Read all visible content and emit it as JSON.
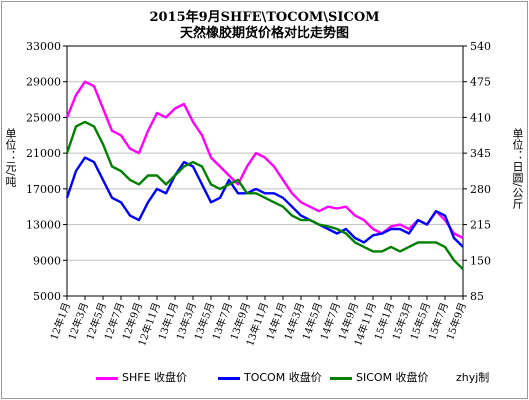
{
  "title_line1": "2015年9月SHFE\\TOCOM\\SICOM",
  "title_line2": "天然橡胶期货价格对比走势图",
  "ylabel_left": "单位：元/吨",
  "ylabel_right": "单位：日圆/公斤",
  "credit": "zhyj制",
  "colors": {
    "shfe": "#ff00ff",
    "tocom": "#0000ff",
    "sicom": "#008000",
    "grid": "#c0c0c0",
    "axis": "#000000"
  },
  "chart_data": {
    "type": "line",
    "title": "2015年9月SHFE\\TOCOM\\SICOM 天然橡胶期货价格对比走势图",
    "x_tick_labels": [
      "12年1月",
      "12年3月",
      "12年5月",
      "12年7月",
      "12年9月",
      "12年11月",
      "13年1月",
      "13年3月",
      "13年5月",
      "13年7月",
      "13年9月",
      "13年11月",
      "14年1月",
      "14年3月",
      "14年5月",
      "14年7月",
      "14年9月",
      "14年11月",
      "15年1月",
      "15年3月",
      "15年5月",
      "15年7月",
      "15年9月"
    ],
    "x_range": [
      "2012-01",
      "2015-09"
    ],
    "left_axis": {
      "label": "单位：元/吨",
      "range": [
        5000,
        33000
      ],
      "ticks": [
        5000,
        9000,
        13000,
        17000,
        21000,
        25000,
        29000,
        33000
      ]
    },
    "right_axis": {
      "label": "单位：日圆/公斤",
      "range": [
        85,
        540
      ],
      "ticks": [
        85,
        150,
        215,
        280,
        345,
        410,
        475,
        540
      ]
    },
    "grid": true,
    "legend_position": "bottom",
    "series": [
      {
        "name": "SHFE 收盘价",
        "axis": "left",
        "x": [
          "2012-01",
          "2012-02",
          "2012-03",
          "2012-04",
          "2012-05",
          "2012-06",
          "2012-07",
          "2012-08",
          "2012-09",
          "2012-10",
          "2012-11",
          "2012-12",
          "2013-01",
          "2013-02",
          "2013-03",
          "2013-04",
          "2013-05",
          "2013-06",
          "2013-07",
          "2013-08",
          "2013-09",
          "2013-10",
          "2013-11",
          "2013-12",
          "2014-01",
          "2014-02",
          "2014-03",
          "2014-04",
          "2014-05",
          "2014-06",
          "2014-07",
          "2014-08",
          "2014-09",
          "2014-10",
          "2014-11",
          "2014-12",
          "2015-01",
          "2015-02",
          "2015-03",
          "2015-04",
          "2015-05",
          "2015-06",
          "2015-07",
          "2015-08",
          "2015-09"
        ],
        "values": [
          25000,
          27500,
          29000,
          28500,
          26000,
          23500,
          23000,
          21500,
          21000,
          23500,
          25500,
          25000,
          26000,
          26500,
          24500,
          23000,
          20500,
          19500,
          18500,
          17500,
          19500,
          21000,
          20500,
          19500,
          18000,
          16500,
          15500,
          15000,
          14500,
          15000,
          14800,
          15000,
          14000,
          13500,
          12500,
          12000,
          12800,
          13000,
          12500,
          13500,
          13000,
          14500,
          13500,
          12000,
          11500
        ]
      },
      {
        "name": "TOCOM 收盘价",
        "axis": "left",
        "x": [
          "2012-01",
          "2012-02",
          "2012-03",
          "2012-04",
          "2012-05",
          "2012-06",
          "2012-07",
          "2012-08",
          "2012-09",
          "2012-10",
          "2012-11",
          "2012-12",
          "2013-01",
          "2013-02",
          "2013-03",
          "2013-04",
          "2013-05",
          "2013-06",
          "2013-07",
          "2013-08",
          "2013-09",
          "2013-10",
          "2013-11",
          "2013-12",
          "2014-01",
          "2014-02",
          "2014-03",
          "2014-04",
          "2014-05",
          "2014-06",
          "2014-07",
          "2014-08",
          "2014-09",
          "2014-10",
          "2014-11",
          "2014-12",
          "2015-01",
          "2015-02",
          "2015-03",
          "2015-04",
          "2015-05",
          "2015-06",
          "2015-07",
          "2015-08",
          "2015-09"
        ],
        "values": [
          16000,
          19000,
          20500,
          20000,
          18000,
          16000,
          15500,
          14000,
          13500,
          15500,
          17000,
          16500,
          18500,
          20000,
          19500,
          17500,
          15500,
          16000,
          18000,
          16500,
          16500,
          17000,
          16500,
          16500,
          16000,
          15000,
          14000,
          13500,
          13000,
          12500,
          12000,
          12500,
          11500,
          11000,
          11800,
          12000,
          12500,
          12500,
          12000,
          13500,
          13000,
          14500,
          14000,
          11500,
          10500
        ]
      },
      {
        "name": "SICOM 收盘价",
        "axis": "left",
        "x": [
          "2012-01",
          "2012-02",
          "2012-03",
          "2012-04",
          "2012-05",
          "2012-06",
          "2012-07",
          "2012-08",
          "2012-09",
          "2012-10",
          "2012-11",
          "2012-12",
          "2013-01",
          "2013-02",
          "2013-03",
          "2013-04",
          "2013-05",
          "2013-06",
          "2013-07",
          "2013-08",
          "2013-09",
          "2013-10",
          "2013-11",
          "2013-12",
          "2014-01",
          "2014-02",
          "2014-03",
          "2014-04",
          "2014-05",
          "2014-06",
          "2014-07",
          "2014-08",
          "2014-09",
          "2014-10",
          "2014-11",
          "2014-12",
          "2015-01",
          "2015-02",
          "2015-03",
          "2015-04",
          "2015-05",
          "2015-06",
          "2015-07",
          "2015-08",
          "2015-09"
        ],
        "values": [
          21000,
          24000,
          24500,
          24000,
          22000,
          19500,
          19000,
          18000,
          17500,
          18500,
          18500,
          17500,
          18500,
          19500,
          20000,
          19500,
          17500,
          17000,
          17500,
          18000,
          16500,
          16500,
          16000,
          15500,
          15000,
          14000,
          13500,
          13500,
          13000,
          12800,
          12500,
          12000,
          11000,
          10500,
          10000,
          10000,
          10500,
          10000,
          10500,
          11000,
          11000,
          11000,
          10500,
          9000,
          8000
        ]
      }
    ]
  }
}
